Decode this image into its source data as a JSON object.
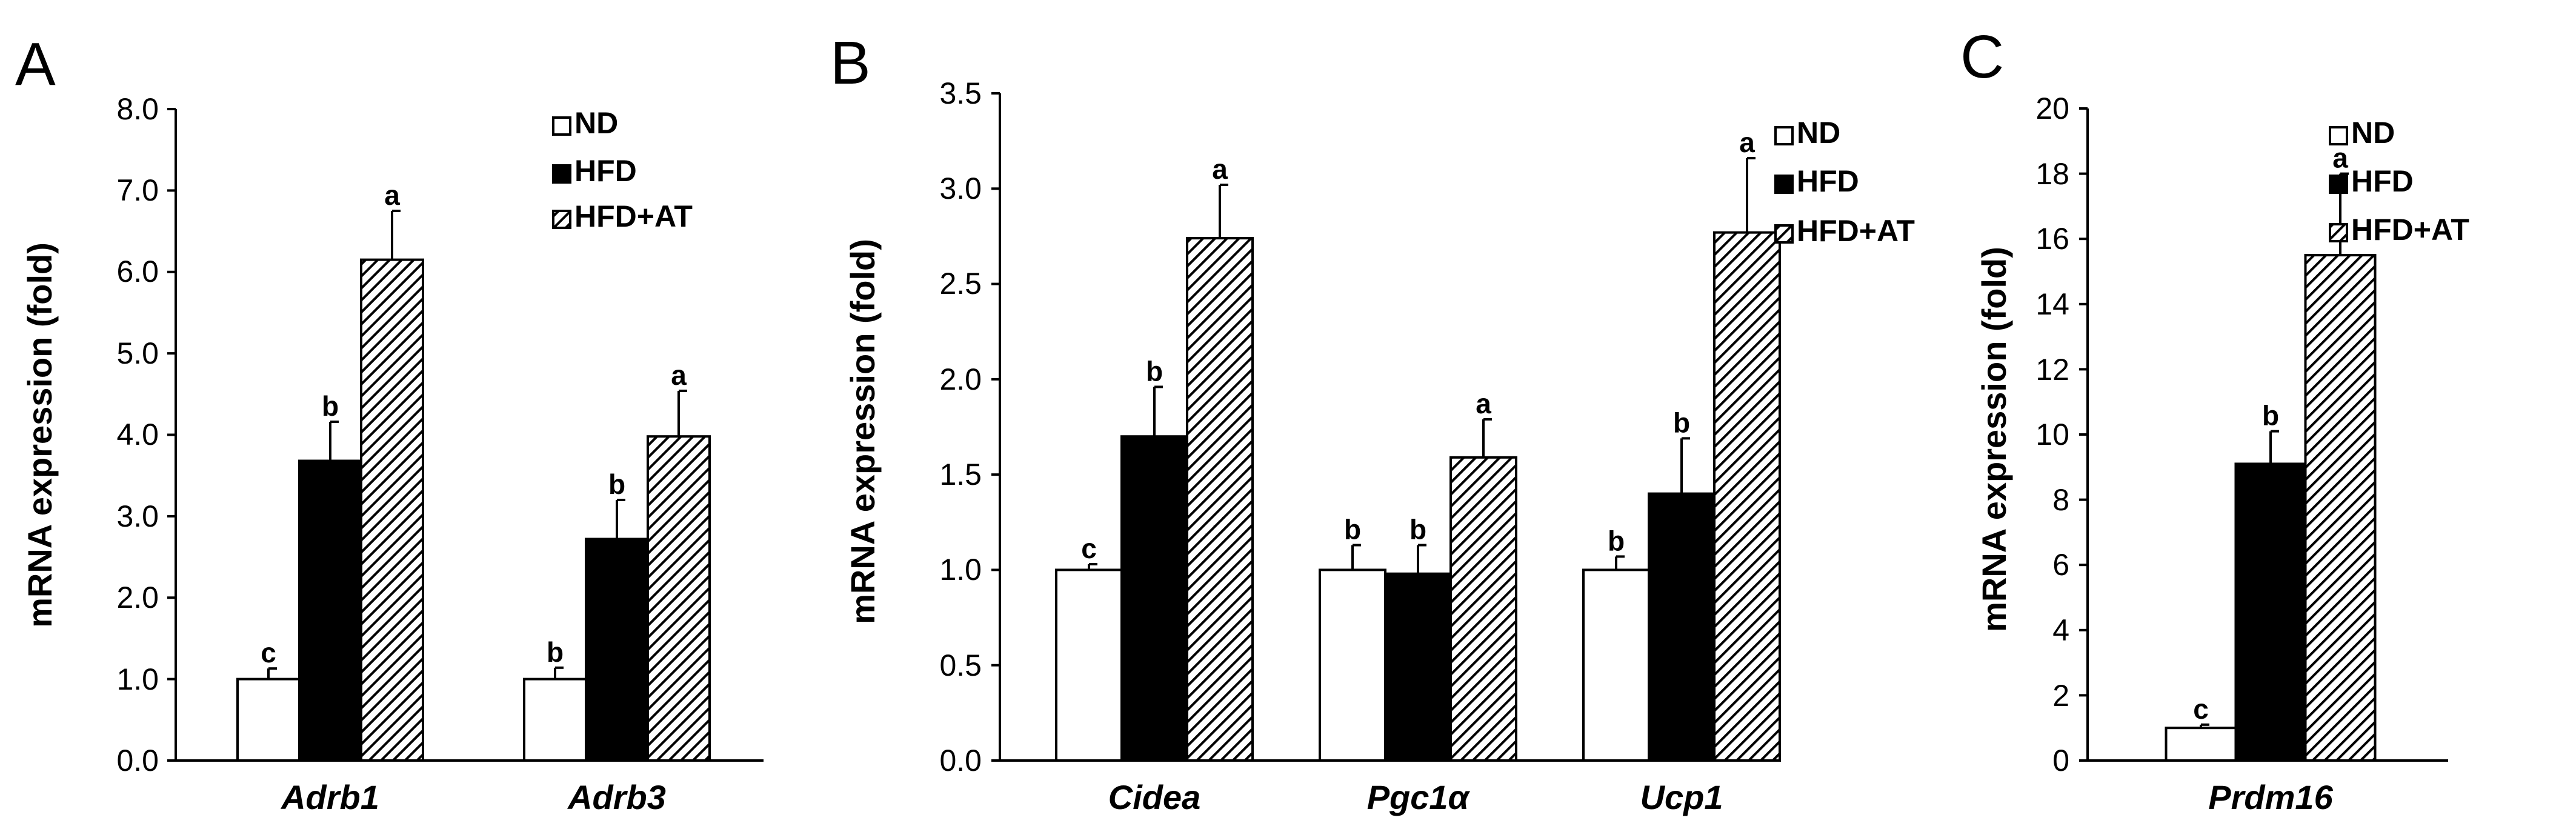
{
  "panels": [
    {
      "letter": "A",
      "ylabel": "mRNA expression (fold)",
      "ticks": [
        "0.0",
        "1.0",
        "2.0",
        "3.0",
        "4.0",
        "5.0",
        "6.0",
        "7.0",
        "8.0"
      ]
    },
    {
      "letter": "B",
      "ylabel": "mRNA expression (fold)",
      "ticks": [
        "0.0",
        "0.5",
        "1.0",
        "1.5",
        "2.0",
        "2.5",
        "3.0",
        "3.5"
      ]
    },
    {
      "letter": "C",
      "ylabel": "mRNA expression (fold)",
      "ticks": [
        "0",
        "2",
        "4",
        "6",
        "8",
        "10",
        "12",
        "14",
        "16",
        "18",
        "20"
      ]
    }
  ],
  "legend": {
    "items": [
      "ND",
      "HFD",
      "HFD+AT"
    ]
  },
  "colors": {
    "ND": "#ffffff",
    "HFD": "#000000",
    "HFD+AT": "hatch",
    "axis": "#000000"
  },
  "chart_data": [
    {
      "type": "bar",
      "title": "",
      "xlabel": "",
      "ylabel": "mRNA expression (fold)",
      "ylim": [
        0,
        8
      ],
      "categories": [
        "Adrb1",
        "Adrb3"
      ],
      "series": [
        {
          "name": "ND",
          "values": [
            1.0,
            1.0
          ],
          "errors": [
            0.13,
            0.14
          ],
          "sig": [
            "c",
            "b"
          ]
        },
        {
          "name": "HFD",
          "values": [
            3.68,
            2.72
          ],
          "errors": [
            0.48,
            0.48
          ],
          "sig": [
            "b",
            "b"
          ]
        },
        {
          "name": "HFD+AT",
          "values": [
            6.15,
            3.98
          ],
          "errors": [
            0.6,
            0.56
          ],
          "sig": [
            "a",
            "a"
          ]
        }
      ]
    },
    {
      "type": "bar",
      "title": "",
      "xlabel": "",
      "ylabel": "mRNA expression (fold)",
      "ylim": [
        0,
        3.5
      ],
      "categories": [
        "Cidea",
        "Pgc1α",
        "Ucp1"
      ],
      "series": [
        {
          "name": "ND",
          "values": [
            1.0,
            1.0,
            1.0
          ],
          "errors": [
            0.03,
            0.13,
            0.07
          ],
          "sig": [
            "c",
            "b",
            "b"
          ]
        },
        {
          "name": "HFD",
          "values": [
            1.7,
            0.98,
            1.4
          ],
          "errors": [
            0.26,
            0.15,
            0.29
          ],
          "sig": [
            "b",
            "b",
            "b"
          ]
        },
        {
          "name": "HFD+AT",
          "values": [
            2.74,
            1.59,
            2.77
          ],
          "errors": [
            0.28,
            0.2,
            0.39
          ],
          "sig": [
            "a",
            "a",
            "a"
          ]
        }
      ]
    },
    {
      "type": "bar",
      "title": "",
      "xlabel": "",
      "ylabel": "mRNA expression (fold)",
      "ylim": [
        0,
        20
      ],
      "categories": [
        "Prdm16"
      ],
      "series": [
        {
          "name": "ND",
          "values": [
            1.0
          ],
          "errors": [
            0.1
          ],
          "sig": [
            "c"
          ]
        },
        {
          "name": "HFD",
          "values": [
            9.1
          ],
          "errors": [
            1.0
          ],
          "sig": [
            "b"
          ]
        },
        {
          "name": "HFD+AT",
          "values": [
            15.5
          ],
          "errors": [
            2.5
          ],
          "sig": [
            "a"
          ]
        }
      ]
    }
  ]
}
